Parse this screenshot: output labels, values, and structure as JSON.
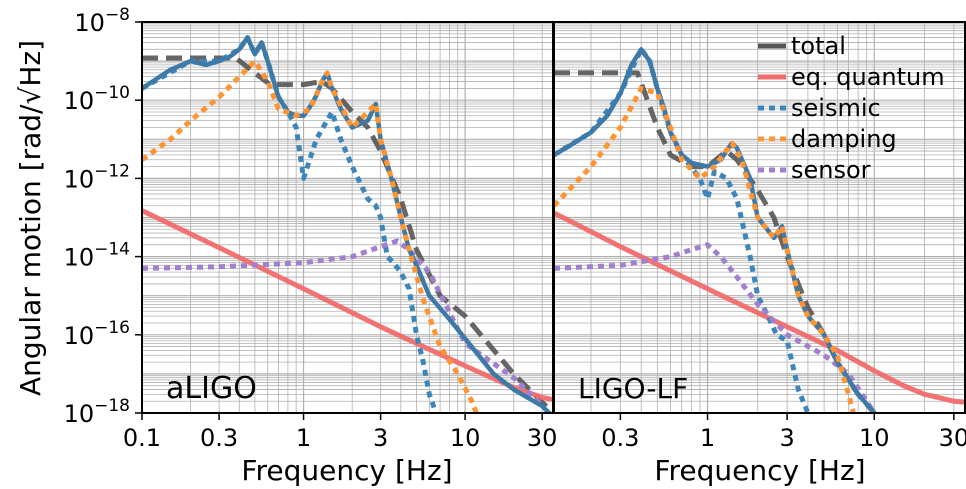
{
  "chart_data": [
    {
      "type": "line",
      "panel_label": "aLIGO",
      "xlabel": "Frequency [Hz]",
      "ylabel": "Angular motion [rad/√Hz]",
      "x_scale": "log",
      "y_scale": "log",
      "xlim": [
        0.1,
        35
      ],
      "ylim": [
        1e-18,
        1e-08
      ],
      "xticks": [
        0.1,
        0.3,
        1,
        3,
        10,
        30
      ],
      "xtick_labels": [
        "0.1",
        "0.3",
        "1",
        "3",
        "10",
        "30"
      ],
      "yticks_exponents": [
        -18,
        -16,
        -14,
        -12,
        -10,
        -8
      ],
      "grid": true,
      "series": [
        {
          "name": "total",
          "points": [
            [
              0.1,
              2e-10
            ],
            [
              0.15,
              6e-10
            ],
            [
              0.2,
              1e-09
            ],
            [
              0.25,
              8e-10
            ],
            [
              0.3,
              1e-09
            ],
            [
              0.35,
              1.3e-09
            ],
            [
              0.4,
              2e-09
            ],
            [
              0.45,
              4e-09
            ],
            [
              0.5,
              1.5e-09
            ],
            [
              0.55,
              3e-09
            ],
            [
              0.6,
              1e-09
            ],
            [
              0.7,
              1.2e-10
            ],
            [
              0.8,
              5e-11
            ],
            [
              0.9,
              4e-11
            ],
            [
              1.0,
              4e-11
            ],
            [
              1.1,
              7e-11
            ],
            [
              1.2,
              1.3e-10
            ],
            [
              1.3,
              3e-10
            ],
            [
              1.4,
              5e-10
            ],
            [
              1.5,
              2e-10
            ],
            [
              1.7,
              6e-11
            ],
            [
              2.0,
              2e-11
            ],
            [
              2.5,
              3e-11
            ],
            [
              2.8,
              8e-11
            ],
            [
              3.0,
              1e-11
            ],
            [
              3.5,
              1e-12
            ],
            [
              4.0,
              1e-13
            ],
            [
              4.5,
              1.5e-14
            ],
            [
              5.0,
              6e-15
            ],
            [
              6.0,
              1e-15
            ],
            [
              8.0,
              2.5e-16
            ],
            [
              10,
              8e-17
            ],
            [
              15,
              1e-17
            ],
            [
              20,
              4e-18
            ],
            [
              30,
              1.5e-18
            ],
            [
              35,
              8e-19
            ]
          ]
        },
        {
          "name": "eq. quantum",
          "points": [
            [
              0.1,
              1.5e-13
            ],
            [
              0.3,
              1.7e-14
            ],
            [
              1,
              1.5e-15
            ],
            [
              3,
              1.6e-16
            ],
            [
              10,
              1.6e-17
            ],
            [
              20,
              4.5e-18
            ],
            [
              30,
              2.5e-18
            ],
            [
              35,
              2.2e-18
            ]
          ]
        },
        {
          "name": "seismic",
          "points": [
            [
              0.1,
              2e-10
            ],
            [
              0.2,
              1e-09
            ],
            [
              0.3,
              1e-09
            ],
            [
              0.4,
              2e-09
            ],
            [
              0.45,
              4e-09
            ],
            [
              0.5,
              1.5e-09
            ],
            [
              0.55,
              3e-09
            ],
            [
              0.6,
              1e-09
            ],
            [
              0.7,
              1.2e-10
            ],
            [
              0.8,
              5e-11
            ],
            [
              0.9,
              2e-11
            ],
            [
              1.0,
              1e-12
            ],
            [
              1.2,
              1e-11
            ],
            [
              1.5,
              5e-11
            ],
            [
              1.7,
              1e-11
            ],
            [
              2.0,
              2e-12
            ],
            [
              2.5,
              3e-13
            ],
            [
              2.8,
              2e-13
            ],
            [
              3.0,
              1e-13
            ],
            [
              3.3,
              1e-14
            ],
            [
              3.6,
              7e-15
            ],
            [
              4.0,
              4e-15
            ],
            [
              4.5,
              1.5e-15
            ],
            [
              5.0,
              1e-16
            ],
            [
              5.5,
              2e-17
            ],
            [
              6.0,
              3e-18
            ],
            [
              6.5,
              1.2e-18
            ]
          ]
        },
        {
          "name": "damping",
          "points": [
            [
              0.1,
              3e-12
            ],
            [
              0.15,
              1e-11
            ],
            [
              0.2,
              3e-11
            ],
            [
              0.3,
              1.2e-10
            ],
            [
              0.4,
              4e-10
            ],
            [
              0.5,
              1e-09
            ],
            [
              0.6,
              3e-10
            ],
            [
              0.7,
              6e-11
            ],
            [
              0.9,
              4e-11
            ],
            [
              1.1,
              6e-11
            ],
            [
              1.3,
              3e-10
            ],
            [
              1.4,
              5e-10
            ],
            [
              1.5,
              2e-10
            ],
            [
              2.0,
              2e-11
            ],
            [
              2.8,
              8e-11
            ],
            [
              3.0,
              1e-11
            ],
            [
              3.5,
              1e-12
            ],
            [
              4.0,
              1e-13
            ],
            [
              4.5,
              1.5e-14
            ],
            [
              5.5,
              8e-16
            ],
            [
              7.0,
              5e-17
            ],
            [
              9.0,
              1e-17
            ],
            [
              11,
              2e-18
            ],
            [
              12,
              8e-19
            ]
          ]
        },
        {
          "name": "sensor",
          "points": [
            [
              0.1,
              5e-15
            ],
            [
              0.3,
              5.5e-15
            ],
            [
              1,
              7e-15
            ],
            [
              2,
              1e-14
            ],
            [
              3,
              1.8e-14
            ],
            [
              3.8,
              2.5e-14
            ],
            [
              4.5,
              1.5e-14
            ],
            [
              6,
              4e-15
            ],
            [
              10,
              6e-17
            ],
            [
              20,
              8e-18
            ],
            [
              30,
              1.5e-18
            ]
          ]
        },
        {
          "name": "",
          "points": [
            [
              0.1,
              1.2e-09
            ],
            [
              0.38,
              1.2e-09
            ],
            [
              0.62,
              2.5e-10
            ],
            [
              1.0,
              2.5e-10
            ],
            [
              1.3,
              3e-10
            ],
            [
              1.5,
              2e-10
            ],
            [
              2.0,
              5e-11
            ],
            [
              2.5,
              2e-11
            ],
            [
              3.0,
              5e-12
            ],
            [
              4.0,
              3e-13
            ],
            [
              5.0,
              1.5e-14
            ],
            [
              7.0,
              1e-15
            ],
            [
              10,
              3e-16
            ],
            [
              20,
              1e-17
            ],
            [
              35,
              1e-18
            ]
          ]
        }
      ]
    },
    {
      "type": "line",
      "panel_label": "LIGO-LF",
      "xlabel": "Frequency [Hz]",
      "x_scale": "log",
      "y_scale": "log",
      "xlim": [
        0.12,
        35
      ],
      "ylim": [
        1e-18,
        1e-08
      ],
      "xticks": [
        0.3,
        1,
        3,
        10,
        30
      ],
      "xtick_labels": [
        "0.3",
        "1",
        "3",
        "10",
        "30"
      ],
      "grid": true,
      "series": [
        {
          "name": "total",
          "points": [
            [
              0.12,
              4e-12
            ],
            [
              0.15,
              7e-12
            ],
            [
              0.2,
              1.5e-11
            ],
            [
              0.25,
              4e-11
            ],
            [
              0.3,
              1.5e-10
            ],
            [
              0.35,
              8e-10
            ],
            [
              0.4,
              2e-09
            ],
            [
              0.45,
              1e-09
            ],
            [
              0.5,
              2e-10
            ],
            [
              0.55,
              6e-11
            ],
            [
              0.6,
              1.5e-11
            ],
            [
              0.7,
              4e-12
            ],
            [
              0.8,
              2.5e-12
            ],
            [
              1.0,
              2e-12
            ],
            [
              1.2,
              3e-12
            ],
            [
              1.4,
              8e-12
            ],
            [
              1.5,
              6e-12
            ],
            [
              1.8,
              1e-12
            ],
            [
              2.0,
              1e-13
            ],
            [
              2.5,
              3e-14
            ],
            [
              2.8,
              6e-14
            ],
            [
              3.0,
              1.5e-14
            ],
            [
              3.5,
              1e-15
            ],
            [
              4.0,
              3e-16
            ],
            [
              5.0,
              1e-16
            ],
            [
              6.0,
              2e-17
            ],
            [
              8.0,
              3e-18
            ],
            [
              10,
              1e-18
            ]
          ]
        },
        {
          "name": "eq. quantum",
          "points": [
            [
              0.12,
              1.3e-13
            ],
            [
              0.3,
              1.8e-14
            ],
            [
              1,
              1.5e-15
            ],
            [
              3,
              1.6e-16
            ],
            [
              6,
              4e-17
            ],
            [
              10,
              1.2e-17
            ],
            [
              15,
              5e-18
            ],
            [
              20,
              3e-18
            ],
            [
              30,
              2e-18
            ],
            [
              35,
              1.9e-18
            ]
          ]
        },
        {
          "name": "seismic",
          "points": [
            [
              0.12,
              4e-12
            ],
            [
              0.2,
              1.5e-11
            ],
            [
              0.3,
              1.5e-10
            ],
            [
              0.4,
              2e-09
            ],
            [
              0.45,
              1e-09
            ],
            [
              0.5,
              2e-10
            ],
            [
              0.6,
              1.5e-11
            ],
            [
              0.7,
              4e-12
            ],
            [
              0.9,
              1e-12
            ],
            [
              1.0,
              3e-13
            ],
            [
              1.1,
              1.5e-12
            ],
            [
              1.3,
              1e-12
            ],
            [
              1.5,
              3e-13
            ],
            [
              1.8,
              1e-14
            ],
            [
              2.0,
              1e-15
            ],
            [
              2.3,
              3e-16
            ],
            [
              2.6,
              1e-16
            ],
            [
              3.0,
              7e-17
            ],
            [
              3.5,
              4e-18
            ],
            [
              4.0,
              1e-18
            ]
          ]
        },
        {
          "name": "damping",
          "points": [
            [
              0.12,
              2e-13
            ],
            [
              0.2,
              2e-12
            ],
            [
              0.3,
              2e-11
            ],
            [
              0.4,
              2e-10
            ],
            [
              0.5,
              1.5e-10
            ],
            [
              0.6,
              2e-11
            ],
            [
              0.7,
              3e-12
            ],
            [
              0.9,
              1e-12
            ],
            [
              1.1,
              2e-12
            ],
            [
              1.4,
              8e-12
            ],
            [
              1.6,
              3e-12
            ],
            [
              2.0,
              1e-13
            ],
            [
              2.5,
              3e-14
            ],
            [
              2.8,
              6e-14
            ],
            [
              3.0,
              1.5e-14
            ],
            [
              3.5,
              1e-15
            ],
            [
              4.0,
              3e-16
            ],
            [
              5.0,
              1e-16
            ],
            [
              6.0,
              3e-17
            ],
            [
              7.0,
              3e-18
            ],
            [
              7.5,
              1e-18
            ]
          ]
        },
        {
          "name": "sensor",
          "points": [
            [
              0.12,
              5e-15
            ],
            [
              0.3,
              6e-15
            ],
            [
              0.6,
              1e-14
            ],
            [
              0.8,
              1.5e-14
            ],
            [
              1.0,
              2e-14
            ],
            [
              1.2,
              1e-14
            ],
            [
              1.5,
              3e-15
            ],
            [
              2.0,
              6e-16
            ],
            [
              3.0,
              1e-16
            ],
            [
              5.0,
              3e-17
            ],
            [
              7.0,
              1e-17
            ],
            [
              9.0,
              2e-18
            ],
            [
              10,
              1e-18
            ]
          ]
        },
        {
          "name": "",
          "points": [
            [
              0.12,
              5e-10
            ],
            [
              0.38,
              5e-10
            ],
            [
              0.5,
              2e-11
            ],
            [
              0.6,
              4e-12
            ],
            [
              0.8,
              2e-12
            ],
            [
              1.0,
              2e-12
            ],
            [
              1.3,
              5e-12
            ],
            [
              1.5,
              3e-12
            ],
            [
              2.0,
              5e-13
            ],
            [
              2.5,
              1e-13
            ],
            [
              3.0,
              1e-14
            ],
            [
              4.0,
              5e-16
            ],
            [
              5.0,
              1e-16
            ],
            [
              6.0,
              2e-17
            ],
            [
              8.0,
              3e-18
            ],
            [
              10,
              1e-18
            ]
          ]
        }
      ]
    }
  ],
  "colors": {
    "total": "#3d7aa8",
    "total_legend": "#555555",
    "eq. quantum": "#f26b6b",
    "seismic": "#3d86bb",
    "damping": "#ff9433",
    "sensor": "#a37fcf",
    "dashed_total": "#555555"
  },
  "legend": {
    "placement": "top-right",
    "items": [
      "total",
      "eq. quantum",
      "seismic",
      "damping",
      "sensor"
    ]
  }
}
